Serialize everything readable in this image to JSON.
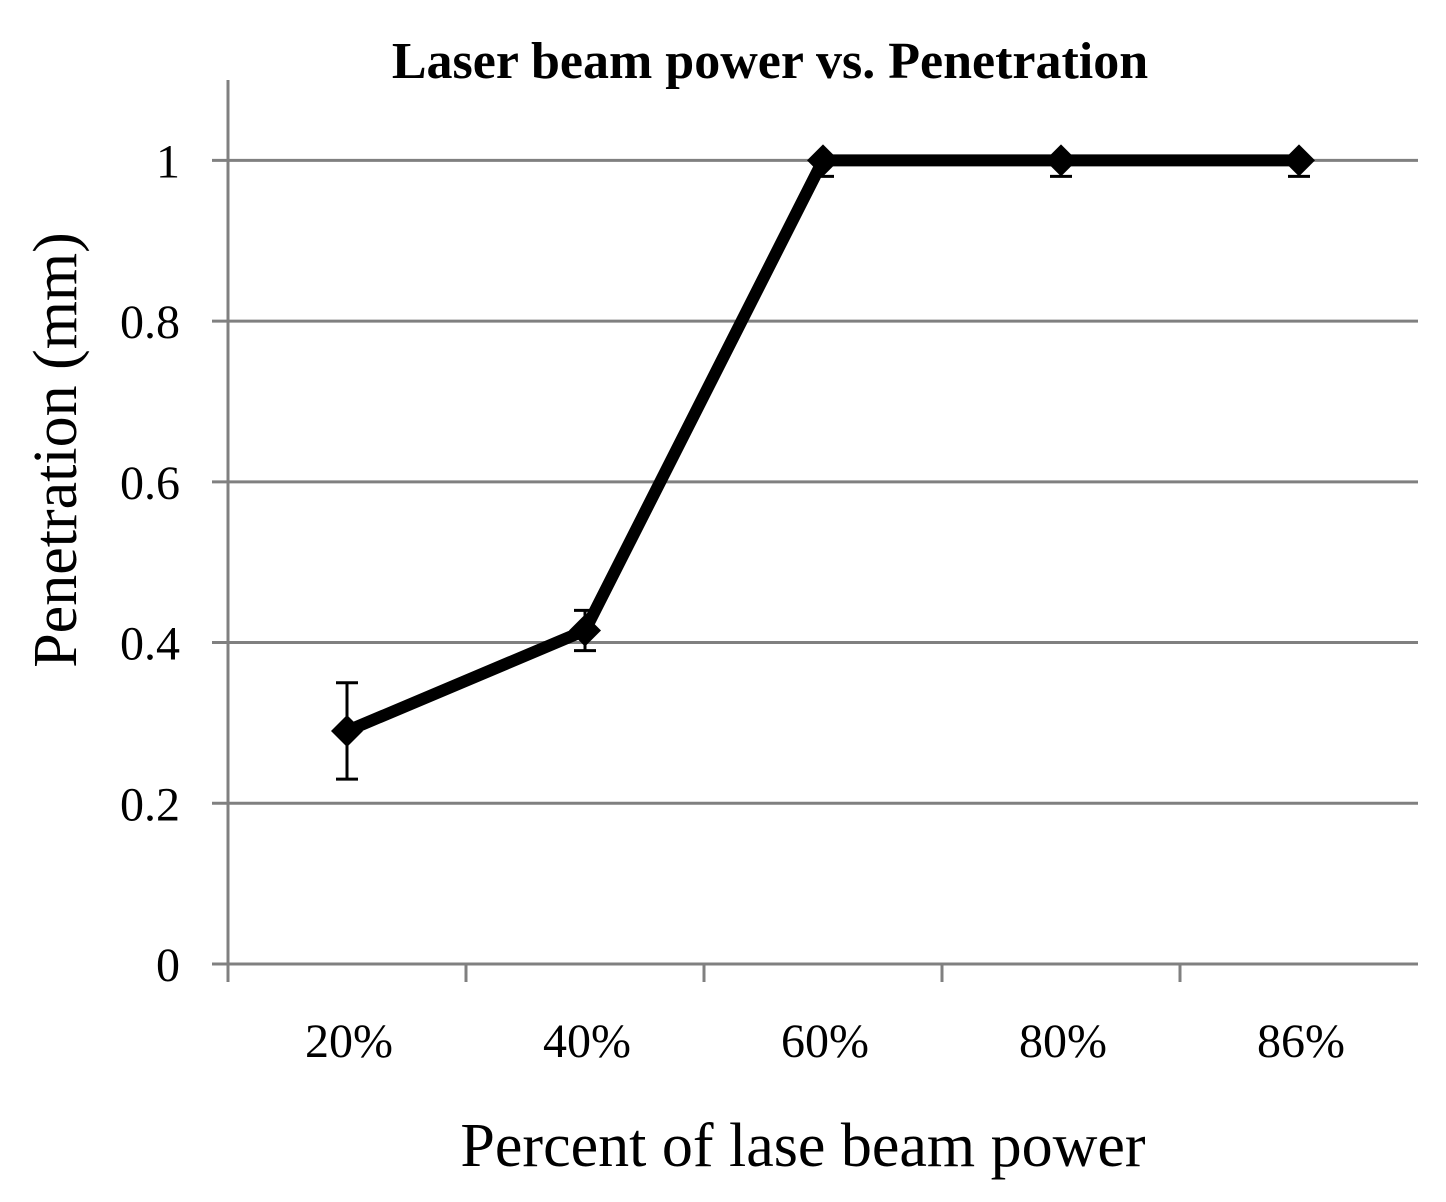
{
  "chart_data": {
    "type": "line",
    "title": "Laser beam power vs. Penetration",
    "xlabel": "Percent of lase beam power",
    "ylabel": "Penetration (mm)",
    "categories": [
      "20%",
      "40%",
      "60%",
      "80%",
      "86%"
    ],
    "series": [
      {
        "name": "Penetration",
        "values": [
          0.29,
          0.415,
          1.0,
          1.0,
          1.0
        ],
        "error_low": [
          0.06,
          0.025,
          0.02,
          0.02,
          0.02
        ],
        "error_high": [
          0.06,
          0.025,
          0.0,
          0.0,
          0.0
        ]
      }
    ],
    "ylim": [
      0,
      1.1
    ],
    "yticks": [
      0,
      0.2,
      0.4,
      0.6,
      0.8,
      1
    ],
    "ytick_labels": [
      "0",
      "0.2",
      "0.4",
      "0.6",
      "0.8",
      "1"
    ],
    "grid": true,
    "legend": "none",
    "colors": {
      "line": "#000000",
      "grid": "#808080",
      "axis": "#808080",
      "text": "#000000"
    }
  }
}
